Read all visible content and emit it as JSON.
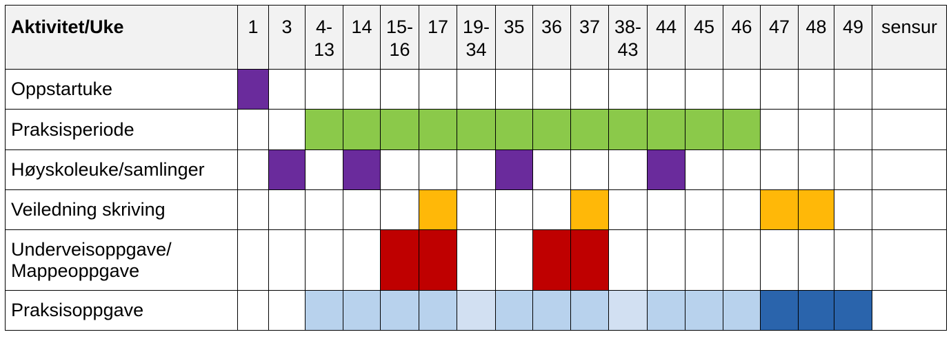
{
  "table": {
    "header_label": "Aktivitet/Uke",
    "weeks": [
      "1",
      "3",
      "4-\n13",
      "14",
      "15-\n16",
      "17",
      "19-\n34",
      "35",
      "36",
      "37",
      "38-\n43",
      "44",
      "45",
      "46",
      "47",
      "48",
      "49",
      "sensur"
    ],
    "rows": [
      {
        "label": "Oppstartuke",
        "cells": [
          "purple",
          "",
          "",
          "",
          "",
          "",
          "",
          "",
          "",
          "",
          "",
          "",
          "",
          "",
          "",
          "",
          "",
          ""
        ]
      },
      {
        "label": "Praksisperiode",
        "cells": [
          "",
          "",
          "green",
          "green",
          "green",
          "green",
          "green",
          "green",
          "green",
          "green",
          "green",
          "green",
          "green",
          "green",
          "",
          "",
          "",
          ""
        ]
      },
      {
        "label": "Høyskoleuke/samlinger",
        "cells": [
          "",
          "purple",
          "",
          "purple",
          "",
          "",
          "",
          "purple",
          "",
          "",
          "",
          "purple",
          "",
          "",
          "",
          "",
          "",
          ""
        ]
      },
      {
        "label": "Veiledning skriving",
        "cells": [
          "",
          "",
          "",
          "",
          "",
          "orange",
          "",
          "",
          "",
          "orange",
          "",
          "",
          "",
          "",
          "orange",
          "orange",
          "",
          ""
        ]
      },
      {
        "label": "Underveisoppgave/ Mappeoppgave",
        "cells": [
          "",
          "",
          "",
          "",
          "red",
          "red",
          "",
          "",
          "red",
          "red",
          "",
          "",
          "",
          "",
          "",
          "",
          "",
          ""
        ]
      },
      {
        "label": "Praksisoppgave",
        "cells": [
          "",
          "",
          "lightblue",
          "lightblue",
          "lightblue",
          "lightblue",
          "paleblue",
          "lightblue",
          "lightblue",
          "lightblue",
          "paleblue",
          "lightblue",
          "lightblue",
          "lightblue",
          "darkblue",
          "darkblue",
          "darkblue",
          ""
        ]
      }
    ]
  },
  "colors": {
    "purple": "#6a2b9c",
    "green": "#8bc94a",
    "orange": "#ffb808",
    "red": "#bf0000",
    "lightblue": "#b8d2ed",
    "paleblue": "#d2e0f2",
    "darkblue": "#2a64ac",
    "header_bg": "#f2f2f2"
  }
}
